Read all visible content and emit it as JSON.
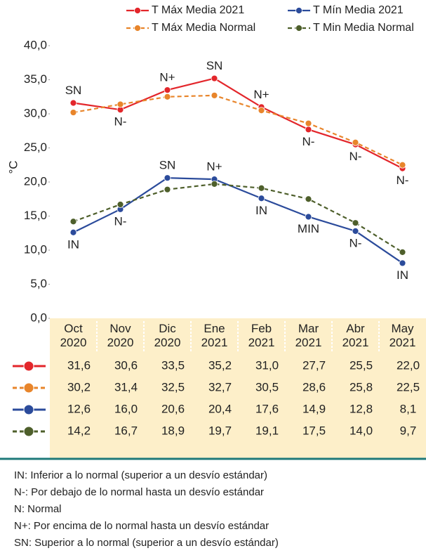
{
  "chart_data": {
    "type": "line",
    "y_label": "°C",
    "categories": [
      "Oct 2020",
      "Nov 2020",
      "Dic 2020",
      "Ene 2021",
      "Feb 2021",
      "Mar 2021",
      "Abr 2021",
      "May 2021"
    ],
    "series": [
      {
        "name": "T  Máx Media 2021",
        "color": "#e3262b",
        "dash": false,
        "values": [
          31.6,
          30.6,
          33.5,
          35.2,
          31.0,
          27.7,
          25.5,
          22.0
        ],
        "value_labels": [
          "31,6",
          "30,6",
          "33,5",
          "35,2",
          "31,0",
          "27,7",
          "25,5",
          "22,0"
        ],
        "annotations": [
          "SN",
          "N-",
          "N+",
          "SN",
          "N+",
          "N-",
          "N-",
          "N-"
        ]
      },
      {
        "name": "T Máx Media Normal",
        "color": "#e8852b",
        "dash": true,
        "values": [
          30.2,
          31.4,
          32.5,
          32.7,
          30.5,
          28.6,
          25.8,
          22.5
        ],
        "value_labels": [
          "30,2",
          "31,4",
          "32,5",
          "32,7",
          "30,5",
          "28,6",
          "25,8",
          "22,5"
        ]
      },
      {
        "name": "T Mín Media 2021",
        "color": "#2b4b9b",
        "dash": false,
        "values": [
          12.6,
          16.0,
          20.6,
          20.4,
          17.6,
          14.9,
          12.8,
          8.1
        ],
        "value_labels": [
          "12,6",
          "16,0",
          "20,6",
          "20,4",
          "17,6",
          "14,9",
          "12,8",
          "8,1"
        ],
        "annotations": [
          "IN",
          "N-",
          "SN",
          "N+",
          "IN",
          "MIN",
          "N-",
          "IN"
        ]
      },
      {
        "name": "T Min Media Normal",
        "color": "#4e5f2b",
        "dash": true,
        "values": [
          14.2,
          16.7,
          18.9,
          19.7,
          19.1,
          17.5,
          14.0,
          9.7
        ],
        "value_labels": [
          "14,2",
          "16,7",
          "18,9",
          "19,7",
          "19,1",
          "17,5",
          "14,0",
          "9,7"
        ]
      }
    ],
    "ylim": [
      0,
      40
    ],
    "yticks": [
      {
        "value": 0,
        "label": "0,0"
      },
      {
        "value": 5,
        "label": "5,0"
      },
      {
        "value": 10,
        "label": "10,0"
      },
      {
        "value": 15,
        "label": "15,0"
      },
      {
        "value": 20,
        "label": "20,0"
      },
      {
        "value": 25,
        "label": "25,0"
      },
      {
        "value": 30,
        "label": "30,0"
      },
      {
        "value": 35,
        "label": "35,0"
      },
      {
        "value": 40,
        "label": "40,0"
      }
    ],
    "footnotes": [
      "IN: Inferior a lo normal (superior a un desvío estándar)",
      "N-: Por debajo de lo normal hasta un desvío estándar",
      "N: Normal",
      "N+: Por encima de lo normal hasta un desvío estándar",
      "SN: Superior a lo normal (superior a un desvío estándar)"
    ]
  }
}
